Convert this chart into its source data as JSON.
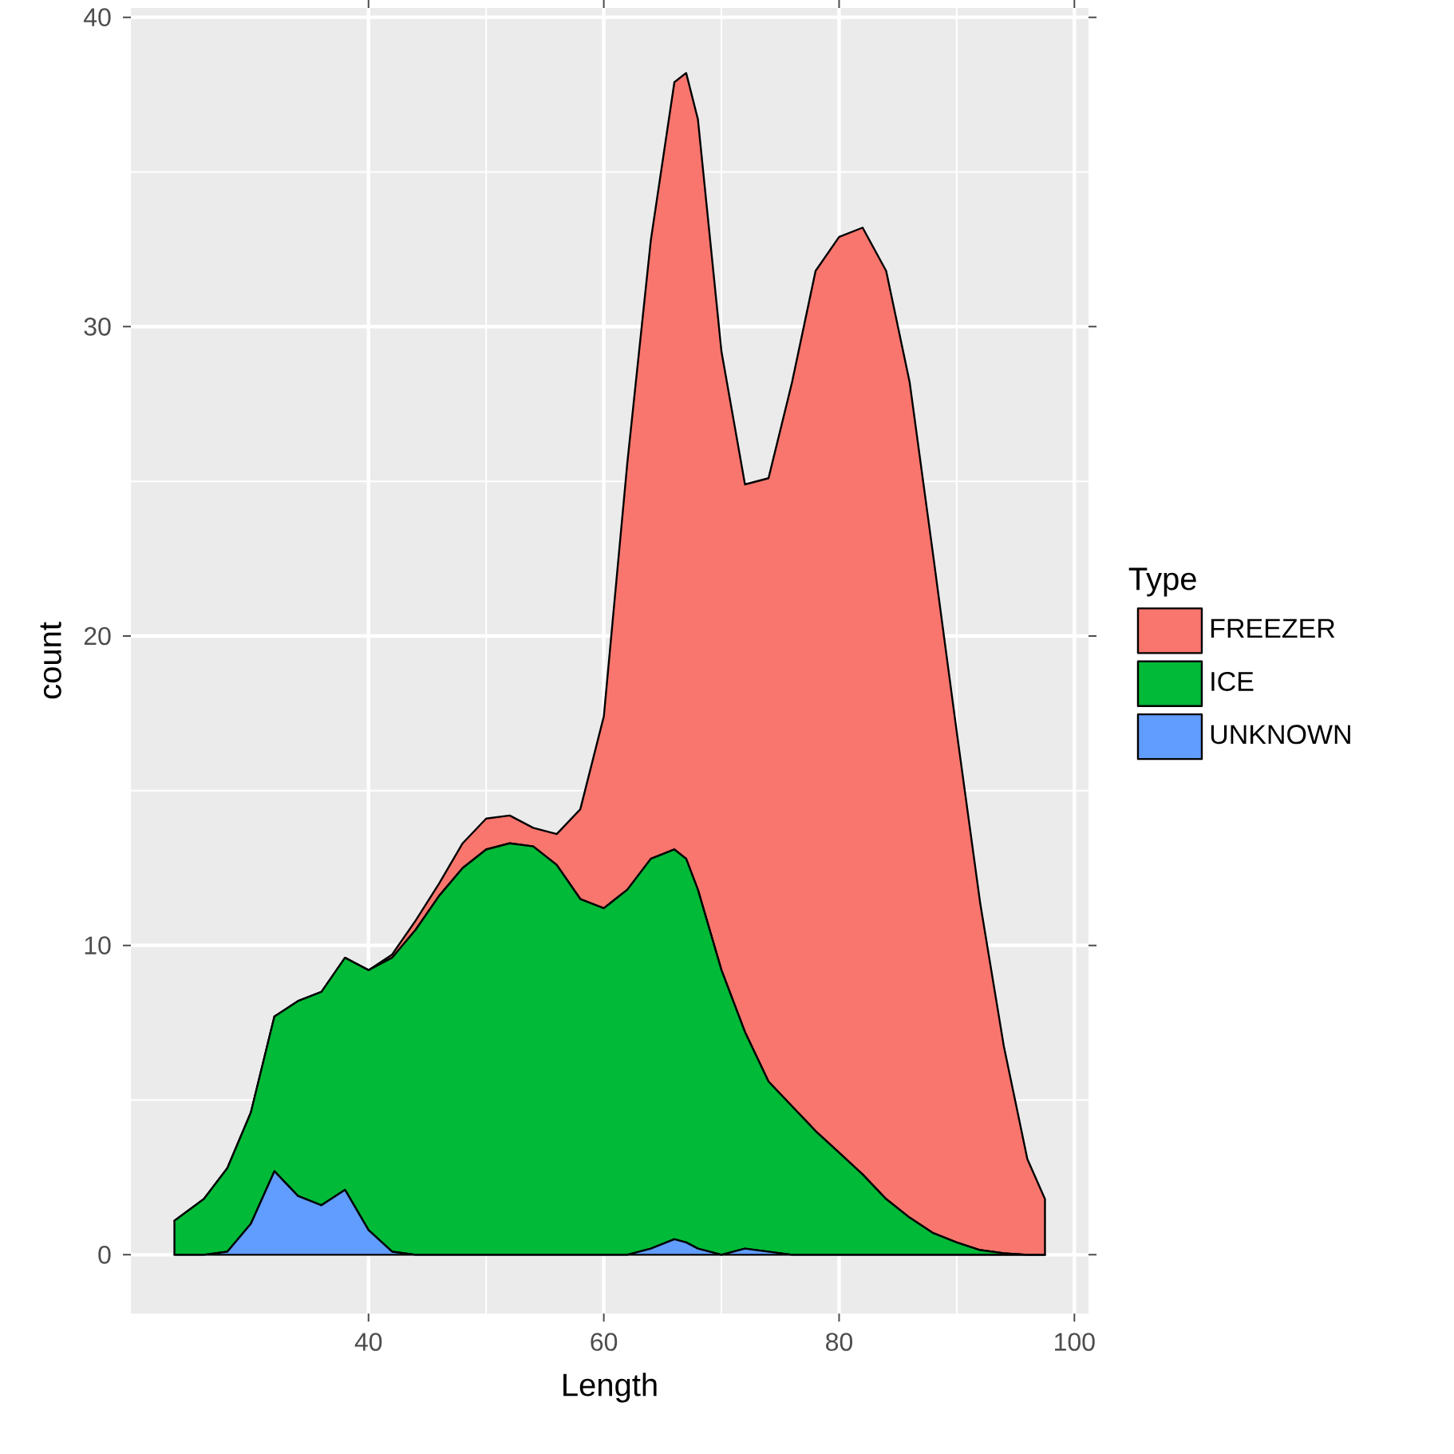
{
  "chart_data": {
    "type": "area",
    "stacked": true,
    "xlabel": "Length",
    "ylabel": "count",
    "legend_title": "Type",
    "legend": "right",
    "grid": true,
    "x": [
      23.5,
      26,
      28,
      30,
      32,
      34,
      36,
      38,
      40,
      42,
      44,
      46,
      48,
      50,
      52,
      54,
      56,
      58,
      60,
      62,
      64,
      66,
      67,
      68,
      70,
      72,
      74,
      76,
      78,
      80,
      82,
      84,
      86,
      88,
      90,
      92,
      94,
      96,
      97.5
    ],
    "xlim": [
      19.8,
      101.2
    ],
    "ylim": [
      -1.9,
      40.3
    ],
    "xticks": [
      40,
      60,
      80,
      100
    ],
    "yticks": [
      0,
      10,
      20,
      30,
      40
    ],
    "series": [
      {
        "name": "UNKNOWN",
        "color": "#619cff",
        "values": [
          0,
          0,
          0.1,
          1.0,
          2.7,
          1.9,
          1.6,
          2.1,
          0.8,
          0.1,
          0,
          0,
          0,
          0,
          0,
          0,
          0,
          0,
          0,
          0,
          0.2,
          0.5,
          0.4,
          0.2,
          0,
          0.2,
          0.1,
          0,
          0,
          0,
          0,
          0,
          0,
          0,
          0,
          0,
          0,
          0,
          0
        ]
      },
      {
        "name": "ICE",
        "color": "#00ba38",
        "values": [
          1.1,
          1.8,
          2.7,
          3.6,
          5.0,
          6.3,
          6.9,
          7.5,
          8.4,
          9.5,
          10.5,
          11.6,
          12.5,
          13.1,
          13.3,
          13.2,
          12.6,
          11.5,
          11.2,
          11.8,
          12.6,
          12.6,
          12.4,
          11.6,
          9.2,
          7.0,
          5.5,
          4.8,
          4.0,
          3.3,
          2.6,
          1.8,
          1.2,
          0.7,
          0.4,
          0.15,
          0.05,
          0,
          0
        ]
      },
      {
        "name": "FREEZER",
        "color": "#f8766d",
        "values": [
          0,
          0,
          0,
          0,
          0,
          0,
          0,
          0,
          0,
          0.1,
          0.3,
          0.4,
          0.8,
          1.0,
          0.9,
          0.6,
          1.0,
          2.9,
          6.2,
          13.8,
          20.0,
          24.8,
          25.4,
          24.9,
          20.0,
          17.7,
          19.5,
          23.4,
          27.8,
          29.6,
          30.6,
          30.0,
          27.0,
          21.9,
          16.5,
          11.2,
          6.7,
          3.1,
          1.8
        ]
      }
    ]
  }
}
